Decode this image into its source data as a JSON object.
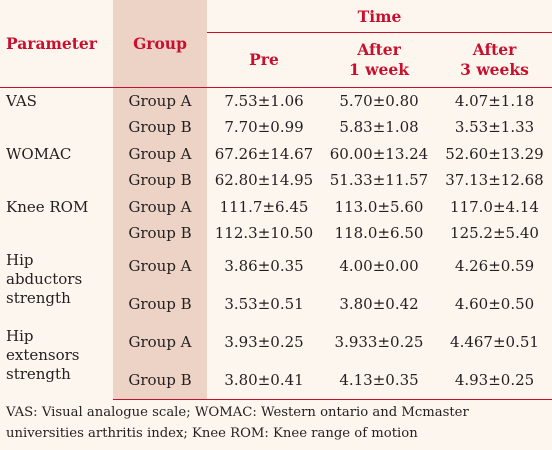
{
  "table": {
    "headers": {
      "parameter": "Parameter",
      "group": "Group",
      "time": "Time",
      "pre": "Pre",
      "after1_line1": "After",
      "after1_line2": "1 week",
      "after3_line1": "After",
      "after3_line2": "3 weeks"
    },
    "rows": [
      {
        "param": "VAS",
        "group": "Group A",
        "pre": "7.53±1.06",
        "w1": "5.70±0.80",
        "w3": "4.07±1.18"
      },
      {
        "param": "",
        "group": "Group B",
        "pre": "7.70±0.99",
        "w1": "5.83±1.08",
        "w3": "3.53±1.33"
      },
      {
        "param": "WOMAC",
        "group": "Group A",
        "pre": "67.26±14.67",
        "w1": "60.00±13.24",
        "w3": "52.60±13.29"
      },
      {
        "param": "",
        "group": "Group B",
        "pre": "62.80±14.95",
        "w1": "51.33±11.57",
        "w3": "37.13±12.68"
      },
      {
        "param": "Knee ROM",
        "group": "Group A",
        "pre": "111.7±6.45",
        "w1": "113.0±5.60",
        "w3": "117.0±4.14"
      },
      {
        "param": "",
        "group": "Group B",
        "pre": "112.3±10.50",
        "w1": "118.0±6.50",
        "w3": "125.2±5.40"
      },
      {
        "param_lines": [
          "Hip",
          "abductors",
          "strength"
        ],
        "group": "Group A",
        "pre": "3.86±0.35",
        "w1": "4.00±0.00",
        "w3": "4.26±0.59"
      },
      {
        "param": "",
        "group": "Group B",
        "pre": "3.53±0.51",
        "w1": "3.80±0.42",
        "w3": "4.60±0.50"
      },
      {
        "param_lines": [
          "Hip",
          "extensors",
          "strength"
        ],
        "group": "Group A",
        "pre": "3.93±0.25",
        "w1": "3.933±0.25",
        "w3": "4.467±0.51"
      },
      {
        "param": "",
        "group": "Group B",
        "pre": "3.80±0.41",
        "w1": "4.13±0.35",
        "w3": "4.93±0.25"
      }
    ]
  },
  "footnote": {
    "line1": "VAS: Visual analogue scale; WOMAC: Western ontario and Mcmaster",
    "line2": "universities arthritis index; Knee ROM: Knee range of motion"
  },
  "colors": {
    "background": "#fdf6ef",
    "header_text": "#c8102e",
    "group_column_shade": "#ecd3c6"
  }
}
